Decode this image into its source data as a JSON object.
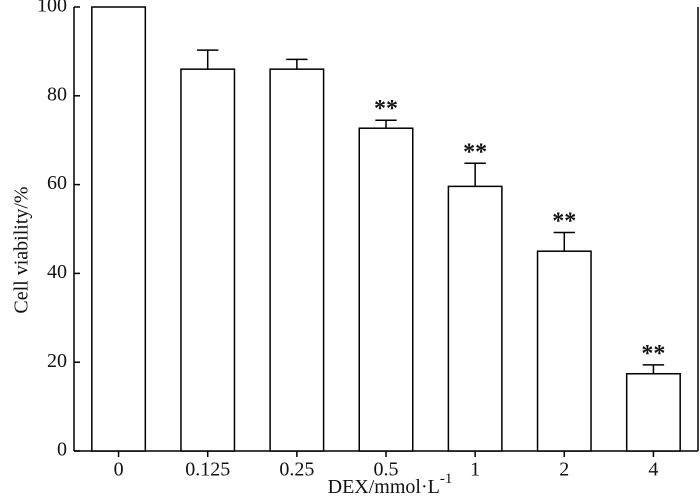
{
  "chart_data": {
    "type": "bar",
    "categories": [
      "0",
      "0.125",
      "0.25",
      "0.5",
      "1",
      "2",
      "4"
    ],
    "series": [
      {
        "values": [
          100,
          86,
          86,
          72.7,
          59.6,
          45,
          17.4
        ],
        "errors": [
          0,
          4.3,
          2.2,
          1.8,
          5.2,
          4.2,
          2
        ]
      }
    ],
    "significance": [
      "",
      "",
      "",
      "**",
      "**",
      "**",
      "**"
    ],
    "xlabel": "DEX/mmol·L",
    "xlabel_superscript": "-1",
    "ylabel": "Cell viability/%",
    "ylim": [
      0,
      100
    ],
    "yticks": [
      0,
      20,
      40,
      60,
      80,
      100
    ],
    "grid": false,
    "legend": "none",
    "colors": {
      "bar_fill": "#ffffff",
      "stroke": "#000000"
    }
  }
}
